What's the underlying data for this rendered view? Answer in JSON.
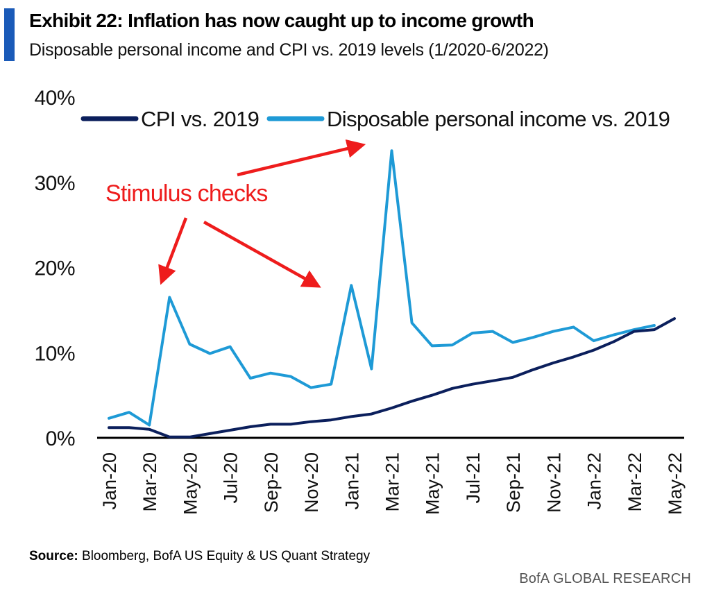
{
  "header": {
    "title": "Exhibit 22: Inflation has now caught up to income growth",
    "subtitle": "Disposable personal income and CPI vs. 2019 levels (1/2020-6/2022)"
  },
  "chart_data": {
    "type": "line",
    "x": [
      "Jan-20",
      "Feb-20",
      "Mar-20",
      "Apr-20",
      "May-20",
      "Jun-20",
      "Jul-20",
      "Aug-20",
      "Sep-20",
      "Oct-20",
      "Nov-20",
      "Dec-20",
      "Jan-21",
      "Feb-21",
      "Mar-21",
      "Apr-21",
      "May-21",
      "Jun-21",
      "Jul-21",
      "Aug-21",
      "Sep-21",
      "Oct-21",
      "Nov-21",
      "Dec-21",
      "Jan-22",
      "Feb-22",
      "Mar-22",
      "Apr-22",
      "May-22"
    ],
    "tick_labels": [
      "Jan-20",
      "Mar-20",
      "May-20",
      "Jul-20",
      "Sep-20",
      "Nov-20",
      "Jan-21",
      "Mar-21",
      "May-21",
      "Jul-21",
      "Sep-21",
      "Nov-21",
      "Jan-22",
      "Mar-22",
      "May-22"
    ],
    "y_ticks": [
      "0%",
      "10%",
      "20%",
      "30%",
      "40%"
    ],
    "ylim": [
      0,
      40
    ],
    "series": [
      {
        "name": "CPI vs. 2019",
        "color": "#0b1f5c",
        "values": [
          1.2,
          1.2,
          1.0,
          0.1,
          0.1,
          0.5,
          0.9,
          1.3,
          1.6,
          1.6,
          1.9,
          2.1,
          2.5,
          2.8,
          3.5,
          4.3,
          5.0,
          5.8,
          6.3,
          6.7,
          7.1,
          8.0,
          8.8,
          9.5,
          10.3,
          11.3,
          12.5,
          12.7,
          14.0
        ]
      },
      {
        "name": "Disposable personal income vs. 2019",
        "color": "#1e9ad6",
        "values": [
          2.3,
          3.0,
          1.5,
          16.5,
          11.0,
          9.9,
          10.7,
          7.0,
          7.6,
          7.2,
          5.9,
          6.3,
          17.9,
          8.1,
          33.7,
          13.5,
          10.8,
          10.9,
          12.3,
          12.5,
          11.2,
          11.8,
          12.5,
          13.0,
          11.4,
          12.1,
          12.7,
          13.2,
          null
        ]
      }
    ],
    "annotation": {
      "text": "Stimulus checks",
      "color": "#ee1c1c"
    }
  },
  "footer": {
    "source_label": "Source:",
    "source_text": "Bloomberg, BofA US Equity & US Quant Strategy",
    "brand": "BofA GLOBAL RESEARCH"
  }
}
